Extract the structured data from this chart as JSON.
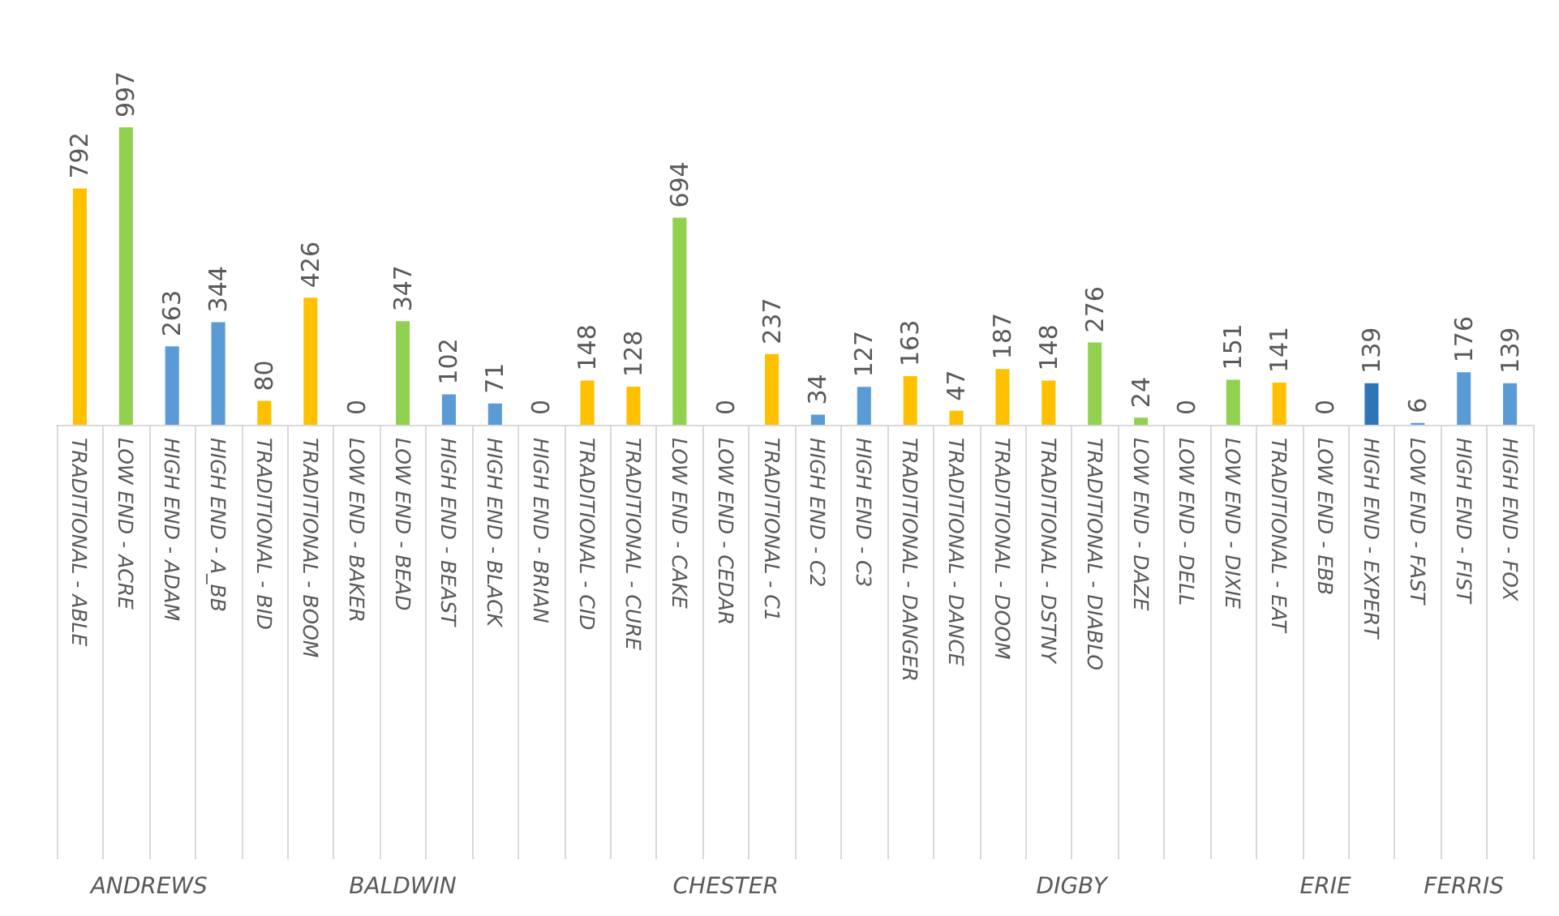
{
  "chart_data": {
    "type": "bar",
    "categories": [
      "TRADITIONAL - ABLE",
      "LOW END - ACRE",
      "HIGH END - ADAM",
      "HIGH END - A_BB",
      "TRADITIONAL - BID",
      "TRADITIONAL - BOOM",
      "LOW END - BAKER",
      "LOW END - BEAD",
      "HIGH END - BEAST",
      "HIGH END - BLACK",
      "HIGH END - BRIAN",
      "TRADITIONAL - CID",
      "TRADITIONAL - CURE",
      "LOW END - CAKE",
      "LOW END - CEDAR",
      "TRADITIONAL - C1",
      "HIGH END - C2",
      "HIGH END - C3",
      "TRADITIONAL - DANGER",
      "TRADITIONAL - DANCE",
      "TRADITIONAL - DOOM",
      "TRADITIONAL - DSTNY",
      "TRADITIONAL - DIABLO",
      "LOW END - DAZE",
      "LOW END - DELL",
      "LOW END - DIXIE",
      "TRADITIONAL - EAT",
      "LOW END - EBB",
      "HIGH END - EXPERT",
      "LOW END - FAST",
      "HIGH END - FIST",
      "HIGH END - FOX"
    ],
    "values": [
      792,
      997,
      263,
      344,
      80,
      426,
      0,
      347,
      102,
      71,
      0,
      148,
      128,
      694,
      0,
      237,
      34,
      127,
      163,
      47,
      187,
      148,
      276,
      24,
      0,
      151,
      141,
      0,
      139,
      6,
      176,
      139
    ],
    "colors": [
      "#ffc000",
      "#92d050",
      "#5b9bd5",
      "#5b9bd5",
      "#ffc000",
      "#ffc000",
      "#92d050",
      "#92d050",
      "#5b9bd5",
      "#5b9bd5",
      "#5b9bd5",
      "#ffc000",
      "#ffc000",
      "#92d050",
      "#92d050",
      "#ffc000",
      "#5b9bd5",
      "#5b9bd5",
      "#ffc000",
      "#ffc000",
      "#ffc000",
      "#ffc000",
      "#92d050",
      "#92d050",
      "#92d050",
      "#92d050",
      "#ffc000",
      "#92d050",
      "#2e75b6",
      "#5b9bd5",
      "#5b9bd5",
      "#5b9bd5"
    ],
    "data_labels": true,
    "annotations": [
      "ANDREWS",
      "BALDWIN",
      "CHESTER",
      "DIGBY",
      "ERIE",
      "FERRIS"
    ]
  }
}
